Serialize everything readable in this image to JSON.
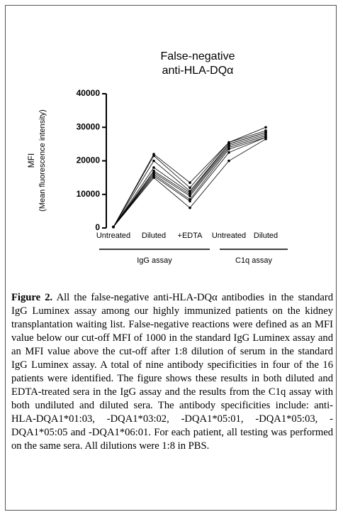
{
  "chart_data": {
    "type": "line",
    "title": "False-negative",
    "subtitle": "anti-HLA-DQα",
    "y_label": "MFI",
    "y_sublabel": "(Mean fluorescence intensity)",
    "categories": [
      "Untreated",
      "Diluted",
      "+EDTA",
      "Untreated",
      "Diluted"
    ],
    "groups": [
      "IgG assay",
      "C1q assay"
    ],
    "ylim": [
      0,
      40000
    ],
    "yticks": [
      0,
      10000,
      20000,
      30000,
      40000
    ],
    "series": [
      {
        "color": "#000000",
        "values": [
          300,
          22000,
          13500,
          25500,
          30000
        ]
      },
      {
        "color": "#000000",
        "values": [
          300,
          21500,
          12000,
          25500,
          29000
        ]
      },
      {
        "color": "#000000",
        "values": [
          300,
          20000,
          11000,
          25000,
          28500
        ]
      },
      {
        "color": "#000000",
        "values": [
          300,
          18000,
          10500,
          25000,
          28500
        ]
      },
      {
        "color": "#000000",
        "values": [
          300,
          17000,
          10000,
          24500,
          28000
        ]
      },
      {
        "color": "#000000",
        "values": [
          300,
          16500,
          9500,
          24000,
          27500
        ]
      },
      {
        "color": "#000000",
        "values": [
          300,
          16000,
          8500,
          23500,
          27000
        ]
      },
      {
        "color": "#000000",
        "values": [
          300,
          15500,
          8000,
          22500,
          27000
        ]
      },
      {
        "color": "#000000",
        "values": [
          300,
          15000,
          6000,
          20000,
          26500
        ]
      }
    ]
  },
  "caption": {
    "label": "Figure 2.",
    "text": "All the false-negative anti-HLA-DQα antibodies in the standard IgG Luminex assay among our highly immunized patients on the kidney transplantation waiting list. False-negative reactions were defined as an MFI value below our cut-off MFI of 1000 in the standard IgG Luminex assay and an MFI value above the cut-off after 1:8 dilution of serum in the standard IgG Luminex assay. A total of nine antibody specificities in four of the 16 patients were identified. The figure shows these results in both diluted and EDTA-treated sera in the IgG assay and the results from the C1q assay with both undiluted and diluted sera. The antibody specificities include: anti-HLA-DQA1*01:03, -DQA1*03:02, -DQA1*05:01, -DQA1*05:03, -DQA1*05:05 and -DQA1*06:01. For each patient, all testing was performed on the same sera. All dilutions were 1:8 in PBS."
  }
}
